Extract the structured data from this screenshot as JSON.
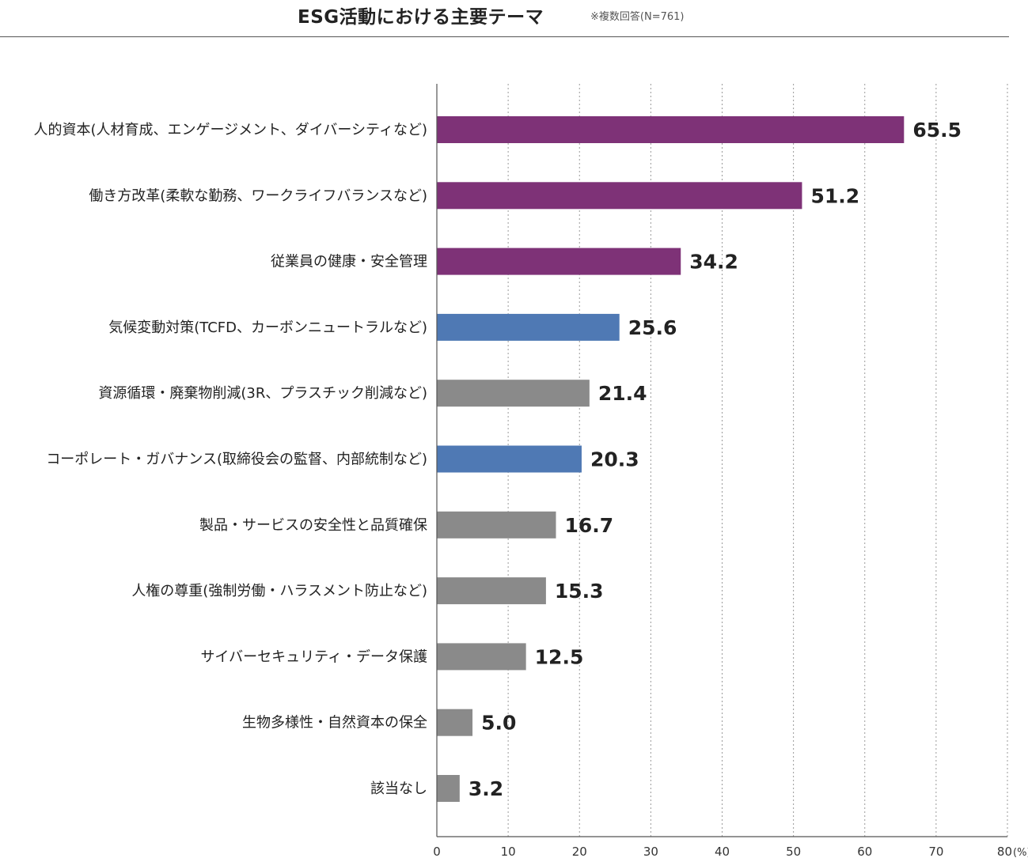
{
  "header": {
    "title": "ESG活動における主要テーマ",
    "note": "※複数回答(N=761)"
  },
  "chart_data": {
    "type": "bar",
    "orientation": "horizontal",
    "title": "ESG活動における主要テーマ",
    "note": "※複数回答(N=761)",
    "unit": "(%)",
    "xlim": [
      0,
      80
    ],
    "x_ticks": [
      0,
      10,
      20,
      30,
      40,
      50,
      60,
      70,
      80
    ],
    "grid": "vertical dotted",
    "categories": [
      "人的資本(人材育成、エンゲージメント、ダイバーシティなど)",
      "働き方改革(柔軟な勤務、ワークライフバランスなど)",
      "従業員の健康・安全管理",
      "気候変動対策(TCFD、カーボンニュートラルなど)",
      "資源循環・廃棄物削減(3R、プラスチック削減など)",
      "コーポレート・ガバナンス(取締役会の監督、内部統制など)",
      "製品・サービスの安全性と品質確保",
      "人権の尊重(強制労働・ハラスメント防止など)",
      "サイバーセキュリティ・データ保護",
      "生物多様性・自然資本の保全",
      "該当なし"
    ],
    "values": [
      65.5,
      51.2,
      34.2,
      25.6,
      21.4,
      20.3,
      16.7,
      15.3,
      12.5,
      5.0,
      3.2
    ],
    "value_labels": [
      "65.5",
      "51.2",
      "34.2",
      "25.6",
      "21.4",
      "20.3",
      "16.7",
      "15.3",
      "12.5",
      "5.0",
      "3.2"
    ],
    "bar_colors": [
      "#7e3277",
      "#7e3277",
      "#7e3277",
      "#4f79b4",
      "#8a8a8a",
      "#4f79b4",
      "#8a8a8a",
      "#8a8a8a",
      "#8a8a8a",
      "#8a8a8a",
      "#8a8a8a"
    ]
  }
}
